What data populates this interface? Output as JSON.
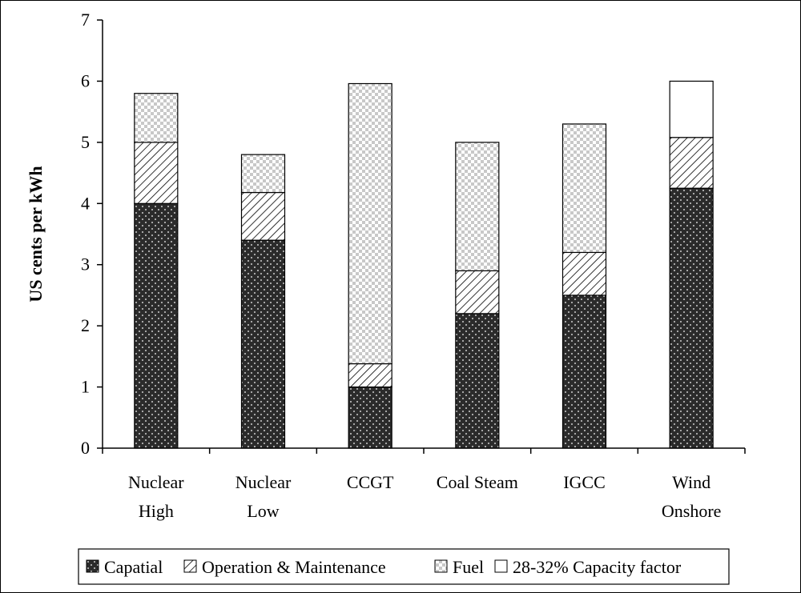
{
  "chart_data": {
    "type": "bar",
    "stacked": true,
    "title": "",
    "xlabel": "",
    "ylabel": "US cents per kWh",
    "ylim": [
      0,
      7
    ],
    "yticks": [
      0,
      1,
      2,
      3,
      4,
      5,
      6,
      7
    ],
    "grid": false,
    "legend_position": "bottom",
    "categories": [
      [
        "Nuclear",
        "High"
      ],
      [
        "Nuclear",
        "Low"
      ],
      [
        "CCGT"
      ],
      [
        "Coal Steam"
      ],
      [
        "IGCC"
      ],
      [
        "Wind",
        "Onshore"
      ]
    ],
    "series": [
      {
        "name": "Capatial",
        "values": [
          4.0,
          3.4,
          1.0,
          2.2,
          2.5,
          4.25
        ],
        "pattern": "dots"
      },
      {
        "name": "Operation & Maintenance",
        "values": [
          1.0,
          0.78,
          0.38,
          0.7,
          0.7,
          0.83
        ],
        "pattern": "hatch"
      },
      {
        "name": "Fuel",
        "values": [
          0.8,
          0.62,
          4.58,
          2.1,
          2.1,
          0
        ],
        "pattern": "checker"
      },
      {
        "name": "28-32% Capacity factor",
        "values": [
          0,
          0,
          0,
          0,
          0,
          0.92
        ],
        "pattern": "white"
      }
    ]
  }
}
